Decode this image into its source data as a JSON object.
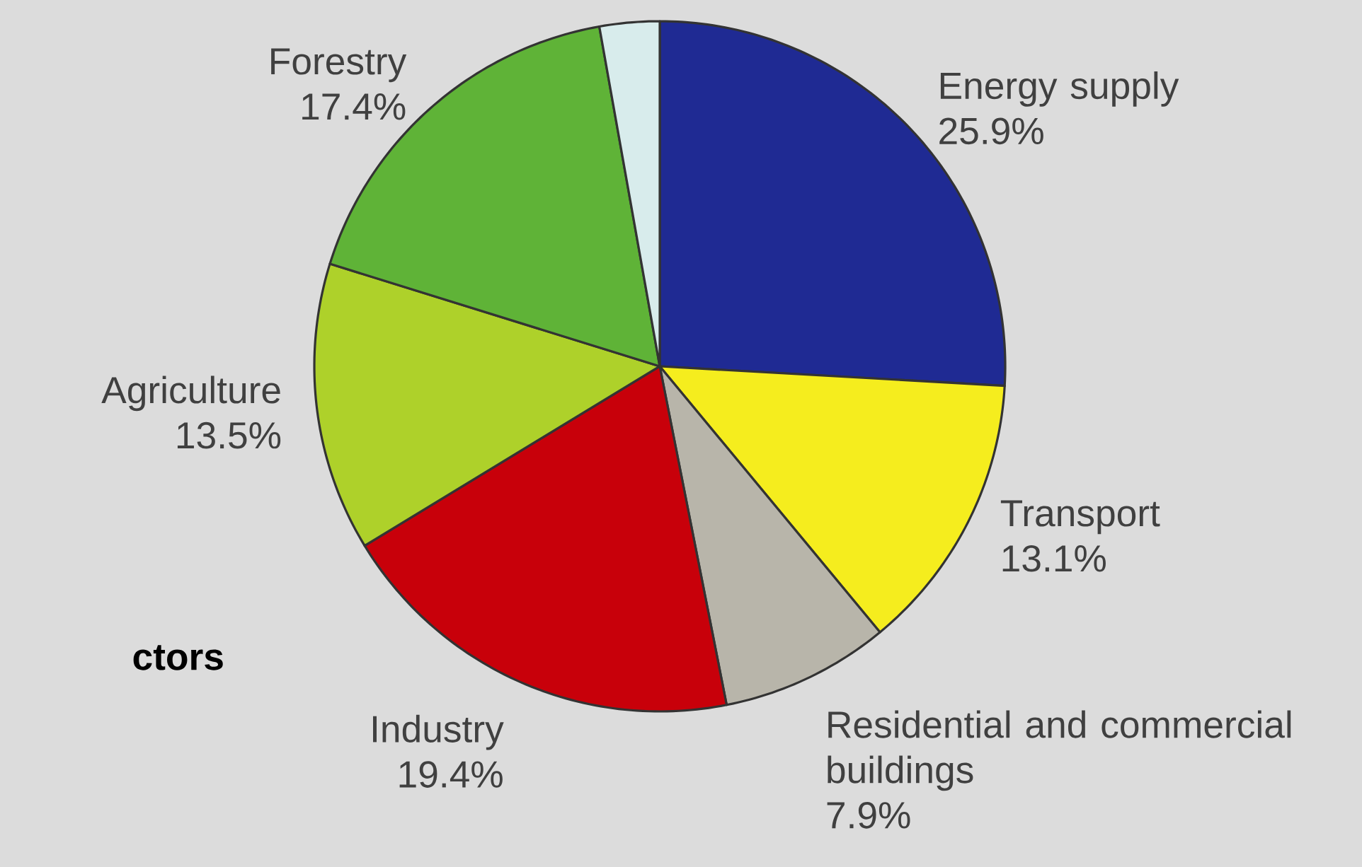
{
  "chart_data": {
    "type": "pie",
    "categories": [
      "Energy supply",
      "Transport",
      "Residential and commercial buildings",
      "Industry",
      "Agriculture",
      "Forestry",
      null
    ],
    "values": [
      25.9,
      13.1,
      7.9,
      19.4,
      13.5,
      17.4,
      2.8
    ],
    "colors": [
      "#1f2a93",
      "#f5ed1e",
      "#b8b5aa",
      "#c8000a",
      "#aed12a",
      "#5fb337",
      "#d8ecec"
    ],
    "value_labels": [
      "25.9%",
      "13.1%",
      "7.9%",
      "19.4%",
      "13.5%",
      "17.4%",
      null
    ],
    "annotations": [
      "ctors"
    ]
  }
}
